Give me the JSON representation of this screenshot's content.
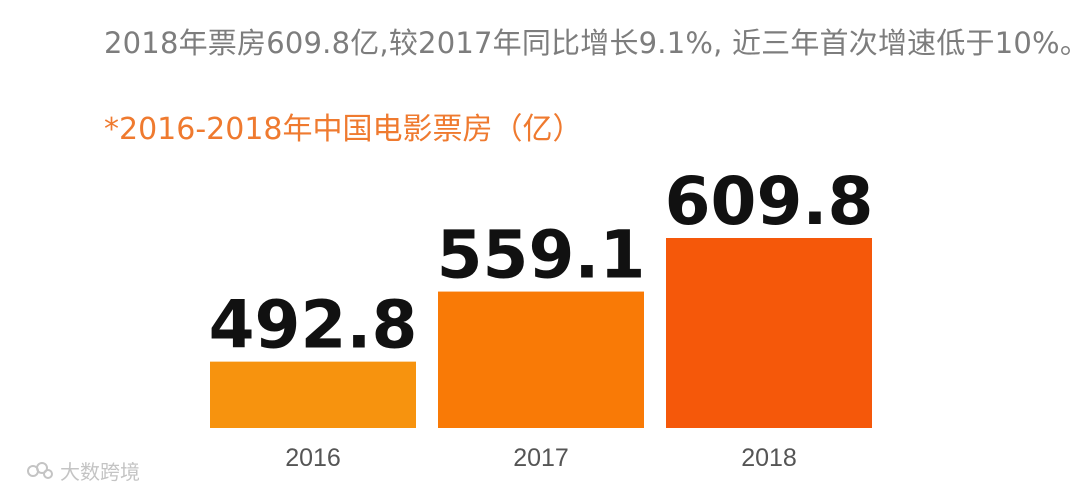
{
  "headline": "2018年票房609.8亿,较2017年同比增长9.1%, 近三年首次增速低于10%。",
  "watermark": {
    "text": "大数跨境",
    "icon": "logo-icon"
  },
  "chart_data": {
    "type": "bar",
    "title": "*2016-2018年中国电影票房（亿）",
    "categories": [
      "2016",
      "2017",
      "2018"
    ],
    "values": [
      492.8,
      559.1,
      609.8
    ],
    "value_labels": [
      "492.8",
      "559.1",
      "609.8"
    ],
    "xlabel": "",
    "ylabel": "",
    "grid": false,
    "bar_colors": [
      "#f7930e",
      "#f97a06",
      "#f5580a"
    ],
    "title_color": "#ef7a2f"
  }
}
